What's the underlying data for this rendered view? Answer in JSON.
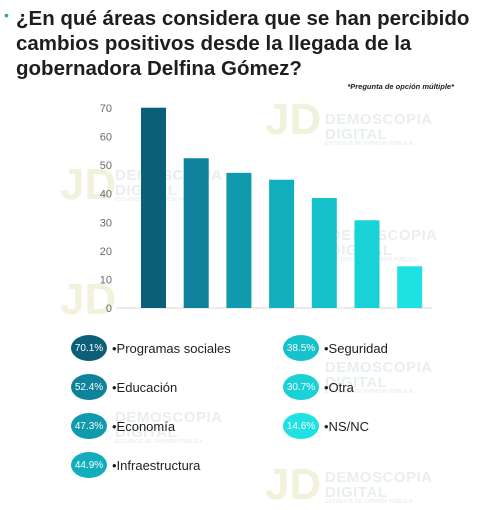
{
  "title": "¿En qué áreas considera que se han percibido cambios positivos desde la llegada de la gobernadora Delfina Gómez?",
  "title_bullet": "•",
  "note": "*Pregunta de opción múltiple*",
  "watermark": {
    "line1": "DEMOSCOPIA",
    "line2": "DIGITAL",
    "tag": "ESTUDIOS DE OPINIÓN PÚBLICA",
    "logo": "JD"
  },
  "colors": {
    "bars": [
      "#0b5f78",
      "#0d829a",
      "#0f9aae",
      "#12aebd",
      "#15c1cb",
      "#18d2d6",
      "#1fe0e2"
    ],
    "axis_text": "#6b6b6b",
    "title_bullet": "#2aa6ad"
  },
  "chart_data": {
    "type": "bar",
    "categories": [
      "Programas sociales",
      "Educación",
      "Economía",
      "Infraestructura",
      "Seguridad",
      "Otra",
      "NS/NC"
    ],
    "values": [
      70.1,
      52.4,
      47.3,
      44.9,
      38.5,
      30.7,
      14.6
    ],
    "y_ticks": [
      0,
      10,
      20,
      30,
      40,
      50,
      60,
      70
    ],
    "ylim": [
      0,
      70
    ],
    "grid": false,
    "xlabel": "",
    "ylabel": ""
  },
  "legend": [
    {
      "value_label": "70.1%",
      "label": "•Programas sociales"
    },
    {
      "value_label": "52.4%",
      "label": "•Educación"
    },
    {
      "value_label": "47.3%",
      "label": "•Economía"
    },
    {
      "value_label": "44.9%",
      "label": "•Infraestructura"
    },
    {
      "value_label": "38.5%",
      "label": "•Seguridad"
    },
    {
      "value_label": "30.7%",
      "label": "•Otra"
    },
    {
      "value_label": "14.6%",
      "label": "•NS/NC"
    }
  ]
}
